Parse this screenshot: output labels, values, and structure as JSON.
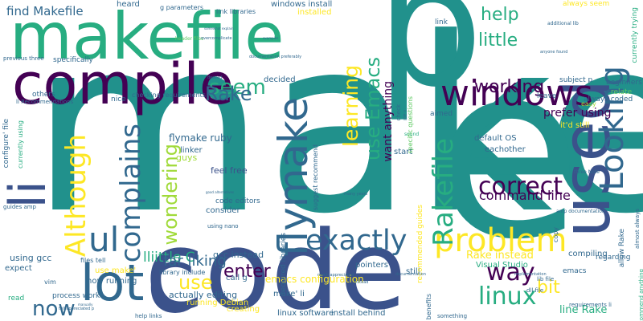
{
  "palette": {
    "navy": "#3b528b",
    "purple": "#440154",
    "teal": "#21918c",
    "green": "#5ec962",
    "yellow": "#fde725",
    "seagreen": "#27ad81",
    "deep": "#31688e",
    "lime": "#a0da39"
  },
  "words": [
    {
      "text": "make",
      "c": "teal"
    },
    {
      "text": "p",
      "c": "teal"
    },
    {
      "text": "e",
      "c": "teal"
    },
    {
      "text": "code",
      "c": "navy"
    },
    {
      "text": "makefile",
      "c": "seagreen"
    },
    {
      "text": "compile",
      "c": "purple"
    },
    {
      "text": "used",
      "c": "navy"
    },
    {
      "text": "C",
      "c": "navy"
    },
    {
      "text": "lot",
      "c": "deep"
    },
    {
      "text": "li",
      "c": "navy"
    },
    {
      "text": "windows",
      "c": "purple"
    },
    {
      "text": "flymake",
      "c": "deep"
    },
    {
      "text": "exactly",
      "c": "deep"
    },
    {
      "text": "problem",
      "c": "yellow"
    },
    {
      "text": "Looking",
      "c": "deep"
    },
    {
      "text": "Rakefile",
      "c": "seagreen"
    },
    {
      "text": "ul",
      "c": "deep"
    },
    {
      "text": "complains",
      "c": "deep"
    },
    {
      "text": "Although",
      "c": "yellow"
    },
    {
      "text": "correct",
      "c": "purple"
    },
    {
      "text": "way",
      "c": "purple"
    },
    {
      "text": "linux",
      "c": "seagreen"
    },
    {
      "text": "now",
      "c": "deep"
    },
    {
      "text": "use Emacs",
      "c": "seagreen"
    },
    {
      "text": "learning",
      "c": "yellow"
    },
    {
      "text": "seem",
      "c": "seagreen"
    },
    {
      "text": "Rake",
      "c": "deep"
    },
    {
      "text": "working",
      "c": "purple"
    },
    {
      "text": "little",
      "c": "seagreen"
    },
    {
      "text": "help",
      "c": "seagreen"
    },
    {
      "text": "wondering",
      "c": "lime"
    },
    {
      "text": "enter",
      "c": "purple"
    },
    {
      "text": "use",
      "c": "yellow"
    },
    {
      "text": "bit",
      "c": "yellow"
    },
    {
      "text": "lliittle C",
      "c": "seagreen"
    },
    {
      "text": "far liking",
      "c": "deep"
    },
    {
      "text": "command line",
      "c": "purple"
    },
    {
      "text": "want anything",
      "c": "purple"
    },
    {
      "text": "find Makefile",
      "c": "deep"
    },
    {
      "text": "prefer using",
      "c": "purple"
    },
    {
      "text": "Rake instead",
      "c": "yellow"
    },
    {
      "text": "line Rake",
      "c": "seagreen"
    },
    {
      "text": "emacs configuration",
      "c": "yellow"
    },
    {
      "text": "flymake ruby",
      "c": "deep"
    },
    {
      "text": "gcc instead",
      "c": "deep"
    },
    {
      "text": "feel free",
      "c": "navy"
    },
    {
      "text": "code editors",
      "c": "deep"
    },
    {
      "text": "consider",
      "c": "deep"
    },
    {
      "text": "actually editing",
      "c": "deep"
    },
    {
      "text": "install behind",
      "c": "deep"
    },
    {
      "text": "linux software",
      "c": "deep"
    },
    {
      "text": "running Debian",
      "c": "yellow"
    },
    {
      "text": "creating",
      "c": "yellow"
    },
    {
      "text": "make' li",
      "c": "deep"
    },
    {
      "text": "call g",
      "c": "deep"
    },
    {
      "text": "now running",
      "c": "deep"
    },
    {
      "text": "library include",
      "c": "deep"
    },
    {
      "text": "use make'",
      "c": "yellow"
    },
    {
      "text": "using gcc",
      "c": "deep"
    },
    {
      "text": "files tell",
      "c": "deep"
    },
    {
      "text": "process work",
      "c": "deep"
    },
    {
      "text": "vim",
      "c": "deep"
    },
    {
      "text": "expect",
      "c": "deep"
    },
    {
      "text": "read",
      "c": "seagreen"
    },
    {
      "text": "guys",
      "c": "lime"
    },
    {
      "text": "linker",
      "c": "deep"
    },
    {
      "text": "pointers",
      "c": "deep"
    },
    {
      "text": "still",
      "c": "deep"
    },
    {
      "text": "decided",
      "c": "deep"
    },
    {
      "text": "nice",
      "c": "deep"
    },
    {
      "text": "others",
      "c": "deep"
    },
    {
      "text": "checking requirements",
      "c": "deep"
    },
    {
      "text": "specifically",
      "c": "deep"
    },
    {
      "text": "previous three",
      "c": "deep"
    },
    {
      "text": "li Recommendations",
      "c": "deep"
    },
    {
      "text": "configure' file",
      "c": "deep"
    },
    {
      "text": "currently using",
      "c": "seagreen"
    },
    {
      "text": "guides amp",
      "c": "deep"
    },
    {
      "text": "default OS",
      "c": "deep"
    },
    {
      "text": "eachother",
      "c": "deep"
    },
    {
      "text": "start",
      "c": "deep"
    },
    {
      "text": "it'd still",
      "c": "yellow"
    },
    {
      "text": "regarding",
      "c": "deep"
    },
    {
      "text": "compiling",
      "c": "deep"
    },
    {
      "text": "emacs",
      "c": "deep"
    },
    {
      "text": "Visual Studio",
      "c": "seagreen"
    },
    {
      "text": "beginners",
      "c": "deep"
    },
    {
      "text": "relate",
      "c": "green"
    },
    {
      "text": "always coded",
      "c": "deep"
    },
    {
      "text": "subject p",
      "c": "deep"
    },
    {
      "text": "leave",
      "c": "deep"
    },
    {
      "text": "aimed",
      "c": "deep"
    },
    {
      "text": "sound",
      "c": "seagreen"
    },
    {
      "text": "windows install",
      "c": "deep"
    },
    {
      "text": "installed",
      "c": "yellow"
    },
    {
      "text": "heard",
      "c": "deep"
    },
    {
      "text": "link libraries",
      "c": "deep"
    },
    {
      "text": "g parameters",
      "c": "deep"
    },
    {
      "text": "link",
      "c": "deep"
    },
    {
      "text": "always seem",
      "c": "yellow"
    },
    {
      "text": "currently trying",
      "c": "seagreen"
    },
    {
      "text": "allow Rake",
      "c": "deep"
    },
    {
      "text": "recommend anything",
      "c": "seagreen"
    },
    {
      "text": "almost always",
      "c": "deep"
    },
    {
      "text": "recommended guides",
      "c": "yellow"
    },
    {
      "text": "required libraries",
      "c": "deep"
    },
    {
      "text": "suggest recommend",
      "c": "deep"
    },
    {
      "text": "benefits",
      "c": "deep"
    },
    {
      "text": "specific questions",
      "c": "green"
    },
    {
      "text": "check",
      "c": "deep"
    },
    {
      "text": "copy",
      "c": "deep"
    },
    {
      "text": "lib file",
      "c": "deep"
    },
    {
      "text": "requirements li",
      "c": "deep"
    },
    {
      "text": "dll file",
      "c": "deep"
    },
    {
      "text": "help links",
      "c": "deep"
    },
    {
      "text": "something",
      "c": "deep"
    },
    {
      "text": "header files",
      "c": "green"
    },
    {
      "text": "additional lib",
      "c": "deep"
    },
    {
      "text": "using nano",
      "c": "deep"
    },
    {
      "text": "three Note",
      "c": "deep"
    },
    {
      "text": "amp documentation",
      "c": "deep"
    },
    {
      "text": "easy",
      "c": "lime"
    },
    {
      "text": "much appreciated",
      "c": "deep"
    },
    {
      "text": "many years",
      "c": "deep"
    },
    {
      "text": "documentation",
      "c": "deep"
    },
    {
      "text": "anyone found",
      "c": "deep"
    },
    {
      "text": "documentation preferably",
      "c": "deep"
    },
    {
      "text": "good alternatives",
      "c": "deep"
    },
    {
      "text": "overcomplicate",
      "c": "deep"
    },
    {
      "text": "examples",
      "c": "deep"
    },
    {
      "text": "desired",
      "c": "deep"
    },
    {
      "text": "IDE li",
      "c": "deep"
    },
    {
      "text": "tell appreciated p",
      "c": "deep"
    },
    {
      "text": "somewhat explain",
      "c": "deep"
    },
    {
      "text": "implementation",
      "c": "deep"
    },
    {
      "text": "instead",
      "c": "deep"
    },
    {
      "text": "manually",
      "c": "deep"
    }
  ]
}
